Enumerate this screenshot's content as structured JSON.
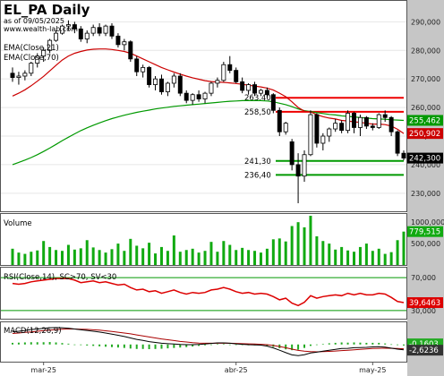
{
  "header": {
    "title": "EL_PA Daily",
    "asof": "as of 09/05/2025",
    "site": "www.wealth-lab.com"
  },
  "price_panel": {
    "ema21_label": "EMA(Close,21)",
    "ema70_label": "EMA(Close,70)",
    "y_ticks": [
      "290,000",
      "280,000",
      "270,000",
      "260,000",
      "250,000",
      "240,000",
      "230,000"
    ],
    "levels": [
      "263,40",
      "258,50",
      "241,30",
      "236,40"
    ],
    "badge_ema70": "255,462",
    "badge_ema21": "250,902",
    "badge_close": "242,300"
  },
  "volume_panel": {
    "label": "Volume",
    "y_ticks": [
      "1000,000",
      "500,000"
    ],
    "badge": "779,515"
  },
  "rsi_panel": {
    "label": "RSI(Close,14), SC>70, SV<30",
    "y_ticks": [
      "70,000",
      "30,000"
    ],
    "badge": "39,6463"
  },
  "macd_panel": {
    "label": "MACD(12,26,9)",
    "badge1": "-0,1603",
    "badge2": "-2,6236"
  },
  "x_ticks": [
    "mar-25",
    "abr-25",
    "may-25"
  ],
  "colors": {
    "up": "#ffffff",
    "down": "#000000",
    "ema21": "#cc0000",
    "ema70": "#009900",
    "resistance": "#ee0000",
    "support": "#009900",
    "volume_bar": "#11aa11",
    "rsi_line": "#dd0000",
    "macd_line": "#000000",
    "signal_line": "#aa0000",
    "hist": "#22aa22",
    "axis_bg": "#c6c6c6"
  },
  "chart_data": {
    "type": "candlestick",
    "title": "EL_PA Daily",
    "price_ylim": [
      224,
      297
    ],
    "candles": [
      {
        "o": 272.0,
        "h": 274.0,
        "l": 269.0,
        "c": 270.5
      },
      {
        "o": 270.5,
        "h": 272.5,
        "l": 268.0,
        "c": 271.0
      },
      {
        "o": 271.0,
        "h": 273.0,
        "l": 269.5,
        "c": 272.0
      },
      {
        "o": 272.0,
        "h": 276.0,
        "l": 271.0,
        "c": 275.5
      },
      {
        "o": 275.5,
        "h": 279.0,
        "l": 274.0,
        "c": 278.0
      },
      {
        "o": 278.0,
        "h": 281.0,
        "l": 276.0,
        "c": 280.0
      },
      {
        "o": 280.0,
        "h": 284.0,
        "l": 279.0,
        "c": 283.5
      },
      {
        "o": 283.5,
        "h": 287.0,
        "l": 283.0,
        "c": 286.0
      },
      {
        "o": 286.0,
        "h": 289.0,
        "l": 285.5,
        "c": 288.5
      },
      {
        "o": 288.5,
        "h": 290.5,
        "l": 287.0,
        "c": 289.0
      },
      {
        "o": 289.0,
        "h": 290.0,
        "l": 286.0,
        "c": 287.5
      },
      {
        "o": 287.5,
        "h": 288.5,
        "l": 283.0,
        "c": 284.0
      },
      {
        "o": 284.0,
        "h": 287.0,
        "l": 282.5,
        "c": 286.0
      },
      {
        "o": 286.0,
        "h": 289.0,
        "l": 285.0,
        "c": 288.0
      },
      {
        "o": 288.0,
        "h": 289.5,
        "l": 285.0,
        "c": 286.0
      },
      {
        "o": 286.0,
        "h": 289.0,
        "l": 285.0,
        "c": 288.5
      },
      {
        "o": 288.5,
        "h": 289.5,
        "l": 284.0,
        "c": 285.0
      },
      {
        "o": 285.0,
        "h": 286.0,
        "l": 281.0,
        "c": 282.0
      },
      {
        "o": 282.0,
        "h": 284.0,
        "l": 280.0,
        "c": 283.0
      },
      {
        "o": 283.0,
        "h": 283.5,
        "l": 276.0,
        "c": 277.0
      },
      {
        "o": 277.0,
        "h": 278.0,
        "l": 271.0,
        "c": 272.5
      },
      {
        "o": 272.5,
        "h": 275.0,
        "l": 270.5,
        "c": 274.0
      },
      {
        "o": 274.0,
        "h": 274.5,
        "l": 267.0,
        "c": 268.0
      },
      {
        "o": 268.0,
        "h": 271.0,
        "l": 266.0,
        "c": 270.0
      },
      {
        "o": 270.0,
        "h": 271.5,
        "l": 264.5,
        "c": 265.5
      },
      {
        "o": 265.5,
        "h": 269.0,
        "l": 264.0,
        "c": 268.5
      },
      {
        "o": 268.5,
        "h": 272.0,
        "l": 267.0,
        "c": 271.0
      },
      {
        "o": 271.0,
        "h": 272.0,
        "l": 264.0,
        "c": 265.0
      },
      {
        "o": 265.0,
        "h": 266.0,
        "l": 261.5,
        "c": 262.5
      },
      {
        "o": 262.5,
        "h": 265.0,
        "l": 261.0,
        "c": 264.5
      },
      {
        "o": 264.5,
        "h": 266.0,
        "l": 262.0,
        "c": 263.0
      },
      {
        "o": 263.0,
        "h": 265.5,
        "l": 261.5,
        "c": 265.0
      },
      {
        "o": 265.0,
        "h": 269.0,
        "l": 264.0,
        "c": 268.5
      },
      {
        "o": 268.5,
        "h": 270.5,
        "l": 267.0,
        "c": 269.5
      },
      {
        "o": 269.5,
        "h": 276.0,
        "l": 269.0,
        "c": 275.0
      },
      {
        "o": 275.0,
        "h": 278.0,
        "l": 272.0,
        "c": 273.0
      },
      {
        "o": 273.0,
        "h": 274.0,
        "l": 268.5,
        "c": 269.0
      },
      {
        "o": 269.0,
        "h": 270.5,
        "l": 265.0,
        "c": 266.0
      },
      {
        "o": 266.0,
        "h": 268.5,
        "l": 264.5,
        "c": 268.0
      },
      {
        "o": 268.0,
        "h": 269.0,
        "l": 264.0,
        "c": 265.0
      },
      {
        "o": 265.0,
        "h": 266.5,
        "l": 264.0,
        "c": 266.0
      },
      {
        "o": 266.0,
        "h": 267.0,
        "l": 263.5,
        "c": 264.5
      },
      {
        "o": 264.5,
        "h": 265.0,
        "l": 258.0,
        "c": 259.0
      },
      {
        "o": 259.0,
        "h": 260.0,
        "l": 250.0,
        "c": 251.5
      },
      {
        "o": 251.5,
        "h": 255.0,
        "l": 250.5,
        "c": 254.5
      },
      {
        "o": 248.0,
        "h": 249.0,
        "l": 238.0,
        "c": 240.0
      },
      {
        "o": 240.0,
        "h": 244.0,
        "l": 226.5,
        "c": 236.0
      },
      {
        "o": 236.0,
        "h": 245.0,
        "l": 234.0,
        "c": 243.5
      },
      {
        "o": 243.5,
        "h": 259.0,
        "l": 243.0,
        "c": 257.5
      },
      {
        "o": 257.5,
        "h": 258.0,
        "l": 246.0,
        "c": 247.5
      },
      {
        "o": 247.5,
        "h": 251.0,
        "l": 245.0,
        "c": 250.0
      },
      {
        "o": 250.0,
        "h": 253.0,
        "l": 248.0,
        "c": 252.5
      },
      {
        "o": 252.5,
        "h": 256.0,
        "l": 251.5,
        "c": 254.5
      },
      {
        "o": 254.5,
        "h": 255.5,
        "l": 251.0,
        "c": 252.0
      },
      {
        "o": 252.0,
        "h": 259.0,
        "l": 251.0,
        "c": 258.0
      },
      {
        "o": 258.0,
        "h": 258.5,
        "l": 251.0,
        "c": 253.0
      },
      {
        "o": 253.0,
        "h": 257.5,
        "l": 250.0,
        "c": 256.5
      },
      {
        "o": 256.5,
        "h": 257.0,
        "l": 252.5,
        "c": 253.5
      },
      {
        "o": 253.5,
        "h": 254.5,
        "l": 252.0,
        "c": 253.0
      },
      {
        "o": 253.0,
        "h": 258.0,
        "l": 252.5,
        "c": 257.5
      },
      {
        "o": 257.5,
        "h": 259.0,
        "l": 255.0,
        "c": 256.5
      },
      {
        "o": 256.5,
        "h": 257.0,
        "l": 250.0,
        "c": 251.5
      },
      {
        "o": 251.5,
        "h": 252.0,
        "l": 243.0,
        "c": 244.0
      },
      {
        "o": 244.0,
        "h": 245.0,
        "l": 241.5,
        "c": 242.3
      }
    ],
    "ema21": [
      264.0,
      265.0,
      266.2,
      267.6,
      269.2,
      270.9,
      272.8,
      274.8,
      276.6,
      278.0,
      279.0,
      279.6,
      280.1,
      280.4,
      280.5,
      280.5,
      280.3,
      280.0,
      279.6,
      279.0,
      278.0,
      277.0,
      276.0,
      275.0,
      274.0,
      273.2,
      272.4,
      271.7,
      271.0,
      270.4,
      269.9,
      269.4,
      269.1,
      268.9,
      268.8,
      268.6,
      268.4,
      268.1,
      267.8,
      267.5,
      267.2,
      266.8,
      266.1,
      265.0,
      263.8,
      262.0,
      260.0,
      258.7,
      258.5,
      257.5,
      256.8,
      256.3,
      256.0,
      255.5,
      255.3,
      255.0,
      254.8,
      254.5,
      254.2,
      254.2,
      254.0,
      253.5,
      252.4,
      250.9
    ],
    "ema70": [
      240.0,
      240.8,
      241.6,
      242.5,
      243.5,
      244.6,
      245.8,
      247.1,
      248.4,
      249.6,
      250.8,
      251.9,
      252.9,
      253.8,
      254.6,
      255.4,
      256.1,
      256.7,
      257.3,
      257.8,
      258.3,
      258.7,
      259.1,
      259.5,
      259.8,
      260.1,
      260.4,
      260.6,
      260.8,
      261.0,
      261.2,
      261.4,
      261.6,
      261.8,
      262.0,
      262.2,
      262.3,
      262.4,
      262.4,
      262.4,
      262.4,
      262.3,
      262.0,
      261.5,
      261.0,
      260.3,
      259.5,
      258.9,
      258.6,
      258.2,
      257.9,
      257.6,
      257.4,
      257.1,
      256.9,
      256.7,
      256.5,
      256.3,
      256.1,
      256.0,
      255.9,
      255.7,
      255.6,
      255.5
    ],
    "levels": [
      263.4,
      258.5,
      241.3,
      236.4
    ],
    "volume_ylim": [
      0,
      1150
    ],
    "volume": [
      380,
      290,
      260,
      310,
      340,
      560,
      420,
      350,
      330,
      470,
      360,
      390,
      580,
      410,
      350,
      290,
      370,
      500,
      330,
      610,
      450,
      390,
      520,
      270,
      420,
      330,
      690,
      310,
      350,
      380,
      290,
      330,
      540,
      310,
      560,
      470,
      350,
      400,
      350,
      330,
      290,
      380,
      600,
      620,
      550,
      910,
      1000,
      880,
      1150,
      670,
      560,
      500,
      360,
      420,
      340,
      310,
      420,
      500,
      330,
      380,
      260,
      300,
      580,
      780
    ],
    "rsi_ylim": [
      20,
      80
    ],
    "rsi": [
      63,
      62,
      63,
      65,
      66,
      67,
      68,
      69,
      69,
      69,
      67,
      64,
      65,
      66,
      64,
      65,
      63,
      61,
      62,
      58,
      55,
      56,
      53,
      54,
      51,
      53,
      55,
      52,
      50,
      52,
      51,
      52,
      55,
      56,
      58,
      56,
      53,
      51,
      52,
      50,
      51,
      50,
      47,
      43,
      45,
      39,
      36,
      40,
      48,
      45,
      47,
      48,
      49,
      48,
      51,
      49,
      51,
      49,
      49,
      51,
      50,
      46,
      41,
      39.6
    ],
    "macd_ylim": [
      -8,
      10
    ],
    "macd": [
      6.2,
      6.5,
      6.9,
      7.3,
      7.6,
      7.9,
      8.2,
      8.3,
      8.2,
      8.0,
      7.6,
      7.2,
      6.9,
      6.5,
      6.1,
      5.6,
      5.1,
      4.5,
      3.9,
      3.2,
      2.5,
      2.0,
      1.4,
      1.0,
      0.6,
      0.4,
      0.2,
      0.0,
      -0.1,
      -0.1,
      0.0,
      0.2,
      0.5,
      0.8,
      0.8,
      0.6,
      0.3,
      0.1,
      -0.1,
      -0.2,
      -0.3,
      -0.8,
      -1.7,
      -2.8,
      -4.0,
      -5.1,
      -5.5,
      -5.0,
      -4.2,
      -3.8,
      -3.3,
      -2.8,
      -2.4,
      -2.0,
      -1.9,
      -1.6,
      -1.5,
      -1.4,
      -1.2,
      -1.1,
      -1.3,
      -1.8,
      -2.3,
      -2.6
    ],
    "signal": [
      5.4,
      5.6,
      5.9,
      6.2,
      6.5,
      6.8,
      7.0,
      7.3,
      7.5,
      7.6,
      7.6,
      7.5,
      7.4,
      7.2,
      7.0,
      6.7,
      6.4,
      6.0,
      5.6,
      5.2,
      4.7,
      4.2,
      3.7,
      3.2,
      2.7,
      2.3,
      1.9,
      1.5,
      1.2,
      0.9,
      0.7,
      0.6,
      0.6,
      0.6,
      0.6,
      0.6,
      0.5,
      0.4,
      0.3,
      0.2,
      0.1,
      -0.1,
      -0.5,
      -1.0,
      -1.6,
      -2.3,
      -2.9,
      -3.3,
      -3.5,
      -3.6,
      -3.5,
      -3.4,
      -3.2,
      -3.0,
      -2.8,
      -2.6,
      -2.4,
      -2.2,
      -2.0,
      -1.9,
      -1.8,
      -1.9,
      -2.0,
      -2.1
    ]
  }
}
